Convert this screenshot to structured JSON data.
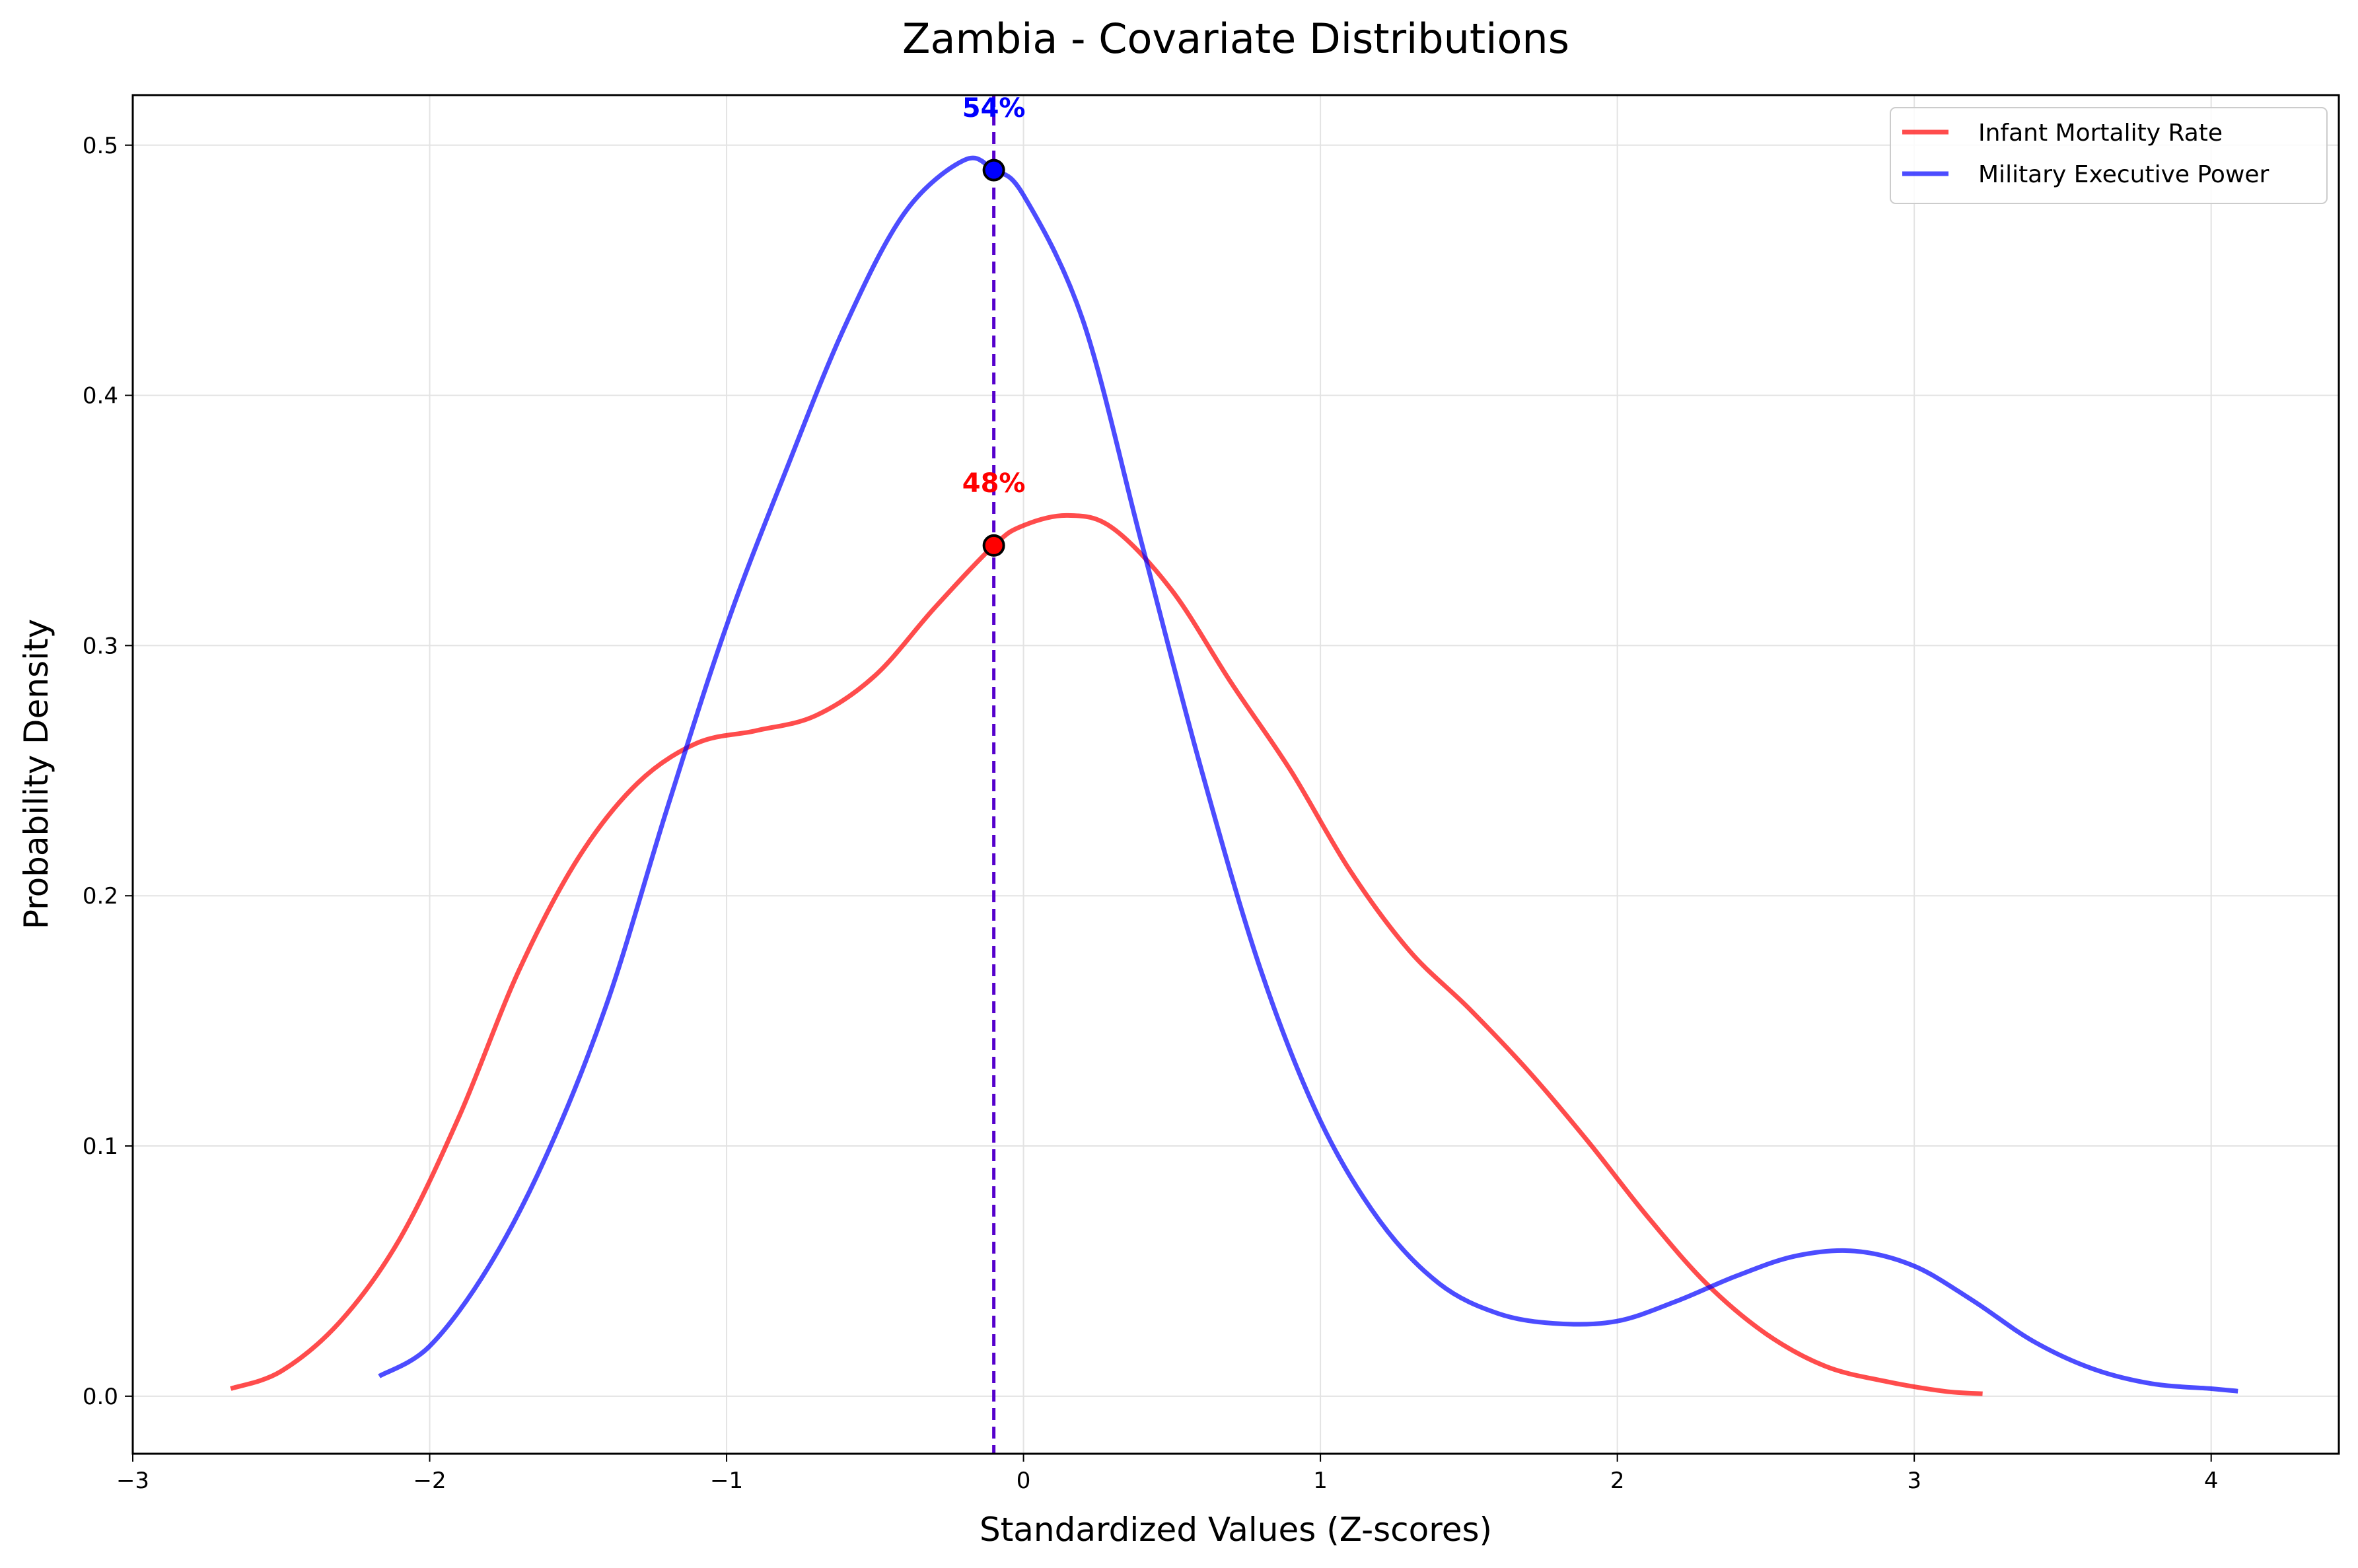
{
  "chart_data": {
    "type": "line",
    "title": "Zambia - Covariate Distributions",
    "xlabel": "Standardized Values (Z-scores)",
    "ylabel": "Probability Density",
    "xlim": [
      -3,
      4.43
    ],
    "ylim": [
      -0.023,
      0.52
    ],
    "xticks": [
      -3,
      -2,
      -1,
      0,
      1,
      2,
      3,
      4
    ],
    "xtick_labels": [
      "−3",
      "−2",
      "−1",
      "0",
      "1",
      "2",
      "3",
      "4"
    ],
    "yticks": [
      0.0,
      0.1,
      0.2,
      0.3,
      0.4,
      0.5
    ],
    "ytick_labels": [
      "0.0",
      "0.1",
      "0.2",
      "0.3",
      "0.4",
      "0.5"
    ],
    "grid": true,
    "legend_position": "top-right",
    "series": [
      {
        "name": "Infant Mortality Rate",
        "color": "#ff0000",
        "x": [
          -2.67,
          -2.5,
          -2.3,
          -2.1,
          -1.9,
          -1.7,
          -1.5,
          -1.3,
          -1.1,
          -0.9,
          -0.7,
          -0.5,
          -0.3,
          -0.1,
          0.0,
          0.15,
          0.3,
          0.5,
          0.7,
          0.9,
          1.1,
          1.3,
          1.5,
          1.7,
          1.9,
          2.1,
          2.3,
          2.5,
          2.7,
          2.9,
          3.1,
          3.23
        ],
        "y": [
          0.003,
          0.01,
          0.03,
          0.063,
          0.112,
          0.17,
          0.215,
          0.245,
          0.261,
          0.266,
          0.272,
          0.288,
          0.315,
          0.34,
          0.348,
          0.352,
          0.347,
          0.322,
          0.285,
          0.25,
          0.21,
          0.178,
          0.155,
          0.13,
          0.102,
          0.072,
          0.045,
          0.025,
          0.012,
          0.006,
          0.002,
          0.001
        ]
      },
      {
        "name": "Military Executive Power",
        "color": "#0000ff",
        "x": [
          -2.17,
          -2.0,
          -1.8,
          -1.6,
          -1.4,
          -1.2,
          -1.0,
          -0.8,
          -0.6,
          -0.4,
          -0.2,
          -0.1,
          0.0,
          0.2,
          0.4,
          0.6,
          0.8,
          1.0,
          1.2,
          1.4,
          1.6,
          1.8,
          2.0,
          2.2,
          2.4,
          2.6,
          2.8,
          3.0,
          3.2,
          3.4,
          3.6,
          3.8,
          4.0,
          4.09
        ],
        "y": [
          0.008,
          0.02,
          0.052,
          0.098,
          0.158,
          0.235,
          0.308,
          0.37,
          0.428,
          0.473,
          0.494,
          0.49,
          0.48,
          0.43,
          0.34,
          0.25,
          0.17,
          0.11,
          0.07,
          0.045,
          0.033,
          0.029,
          0.03,
          0.038,
          0.048,
          0.056,
          0.058,
          0.052,
          0.038,
          0.022,
          0.011,
          0.005,
          0.003,
          0.002
        ]
      }
    ],
    "vline": {
      "x": -0.1,
      "color": "#5500cc",
      "style": "dashed"
    },
    "markers": [
      {
        "series": "Military Executive Power",
        "x": -0.1,
        "y": 0.49,
        "label": "54%",
        "color": "#0000ff",
        "label_y": 0.515
      },
      {
        "series": "Infant Mortality Rate",
        "x": -0.1,
        "y": 0.34,
        "label": "48%",
        "color": "#ff0000",
        "label_y": 0.365
      }
    ]
  }
}
